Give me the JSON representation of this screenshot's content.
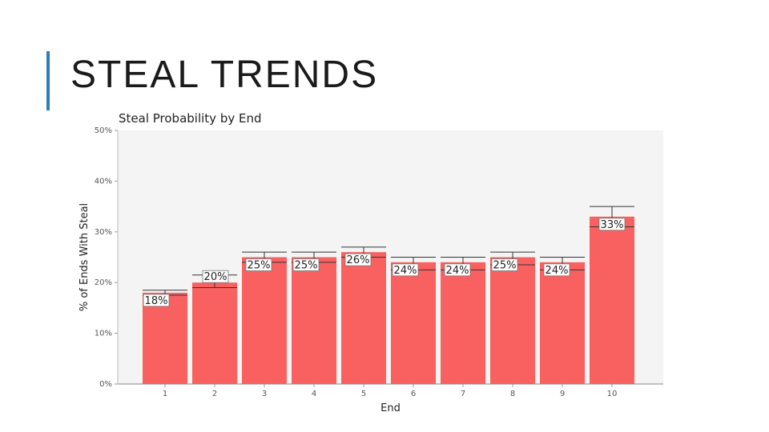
{
  "slide": {
    "title": "STEAL TRENDS"
  },
  "colors": {
    "accent": "#2a7fb8",
    "bar": "#f96161",
    "plot_bg": "#f4f4f4"
  },
  "chart_data": {
    "type": "bar",
    "title": "Steal Probability by End",
    "xlabel": "End",
    "ylabel": "% of Ends With Steal",
    "categories": [
      "1",
      "2",
      "3",
      "4",
      "5",
      "6",
      "7",
      "8",
      "9",
      "10"
    ],
    "values": [
      18,
      20,
      25,
      25,
      26,
      24,
      24,
      25,
      24,
      33
    ],
    "data_labels": [
      "18%",
      "20%",
      "25%",
      "25%",
      "26%",
      "24%",
      "24%",
      "25%",
      "24%",
      "33%"
    ],
    "error_bars": [
      {
        "low": 17.5,
        "high": 18.5
      },
      {
        "low": 19,
        "high": 21.5
      },
      {
        "low": 24,
        "high": 26
      },
      {
        "low": 24,
        "high": 26
      },
      {
        "low": 25,
        "high": 27
      },
      {
        "low": 22.5,
        "high": 25
      },
      {
        "low": 22.5,
        "high": 25
      },
      {
        "low": 23.5,
        "high": 26
      },
      {
        "low": 22.5,
        "high": 25
      },
      {
        "low": 31,
        "high": 35
      }
    ],
    "y_ticks": [
      "0%",
      "10%",
      "20%",
      "30%",
      "40%",
      "50%"
    ],
    "ylim": [
      0,
      50
    ],
    "grid": false,
    "legend": "none"
  }
}
